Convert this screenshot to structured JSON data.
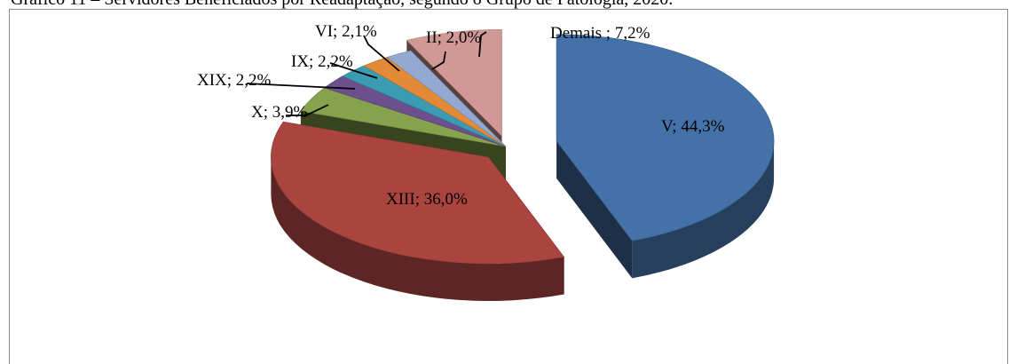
{
  "caption": "Gráfico 11 – Servidores Beneficiados por Readaptação, segundo o Grupo de Patologia, 2020.",
  "chart_data": {
    "type": "pie",
    "title": "Gráfico 11 – Servidores Beneficiados por Readaptação, segundo o Grupo de Patologia, 2020.",
    "slices": [
      {
        "label": "V",
        "value": 44.3,
        "text": "V; 44,3%",
        "color": "#4472a8"
      },
      {
        "label": "XIII",
        "value": 36.0,
        "text": "XIII; 36,0%",
        "color": "#a9443f"
      },
      {
        "label": "X",
        "value": 3.9,
        "text": "X; 3,9%",
        "color": "#86a24d"
      },
      {
        "label": "XIX",
        "value": 2.2,
        "text": "XIX; 2,2%",
        "color": "#6b4f8e"
      },
      {
        "label": "IX",
        "value": 2.2,
        "text": "IX; 2,2%",
        "color": "#3a9bb3"
      },
      {
        "label": "VI",
        "value": 2.1,
        "text": "VI; 2,1%",
        "color": "#e28a35"
      },
      {
        "label": "II",
        "value": 2.0,
        "text": "II; 2,0%",
        "color": "#93a9d0"
      },
      {
        "label": "Demais",
        "value": 7.2,
        "text": "Demais ; 7,2%",
        "color": "#d19896"
      }
    ],
    "exploded": [
      "V",
      "XIII",
      "Demais"
    ],
    "style": "3d-exploded"
  }
}
